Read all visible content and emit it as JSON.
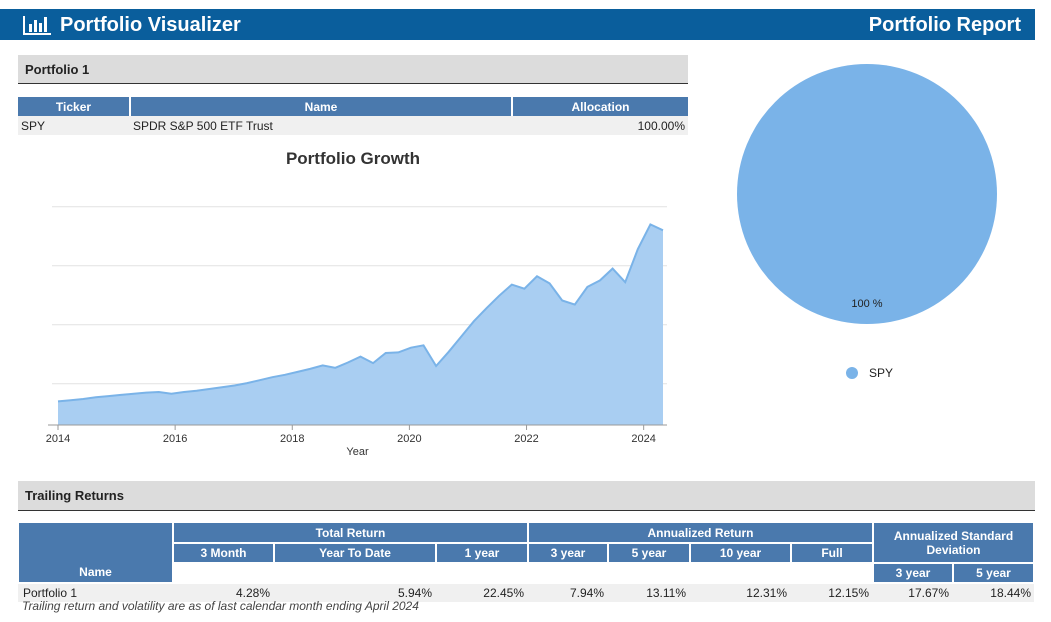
{
  "header": {
    "brand": "Portfolio Visualizer",
    "report_title": "Portfolio Report",
    "brand_color": "#0a5e9c"
  },
  "portfolio_section": {
    "title": "Portfolio 1"
  },
  "holdings": {
    "columns": [
      "Ticker",
      "Name",
      "Allocation"
    ],
    "rows": [
      {
        "ticker": "SPY",
        "name": "SPDR S&P 500 ETF Trust",
        "allocation": "100.00%"
      }
    ]
  },
  "chart_data": [
    {
      "type": "area",
      "title": "Portfolio Growth",
      "xlabel": "Year",
      "ylabel": "",
      "x_ticks": [
        "2014",
        "2016",
        "2018",
        "2020",
        "2022",
        "2024"
      ],
      "grid": true,
      "color": "#7ab3e8",
      "series": [
        {
          "values": [
            1.0,
            1.02,
            1.04,
            1.07,
            1.09,
            1.11,
            1.13,
            1.15,
            1.16,
            1.13,
            1.16,
            1.18,
            1.21,
            1.24,
            1.27,
            1.31,
            1.36,
            1.41,
            1.45,
            1.5,
            1.55,
            1.61,
            1.57,
            1.66,
            1.76,
            1.65,
            1.82,
            1.83,
            1.91,
            1.95,
            1.6,
            1.84,
            2.1,
            2.36,
            2.58,
            2.79,
            2.98,
            2.91,
            3.12,
            3.0,
            2.71,
            2.64,
            2.94,
            3.05,
            3.25,
            3.02,
            3.58,
            4.0,
            3.9
          ]
        }
      ]
    },
    {
      "type": "pie",
      "categories": [
        "SPY"
      ],
      "values": [
        100
      ],
      "data_labels": [
        "100 %"
      ],
      "legend": "bottom",
      "color": "#7ab3e8"
    }
  ],
  "trailing": {
    "title": "Trailing Returns",
    "group_headers": {
      "total_return": "Total Return",
      "annualized_return": "Annualized Return",
      "annualized_std": "Annualized Standard Deviation"
    },
    "col_name": "Name",
    "total_cols": [
      "3 Month",
      "Year To Date",
      "1 year"
    ],
    "ann_cols": [
      "3 year",
      "5 year",
      "10 year",
      "Full"
    ],
    "std_cols": [
      "3 year",
      "5 year"
    ],
    "rows": [
      {
        "name": "Portfolio 1",
        "values": [
          "4.28%",
          "5.94%",
          "22.45%",
          "7.94%",
          "13.11%",
          "12.31%",
          "12.15%",
          "17.67%",
          "18.44%"
        ]
      }
    ],
    "footnote": "Trailing return and volatility are as of last calendar month ending April 2024"
  }
}
